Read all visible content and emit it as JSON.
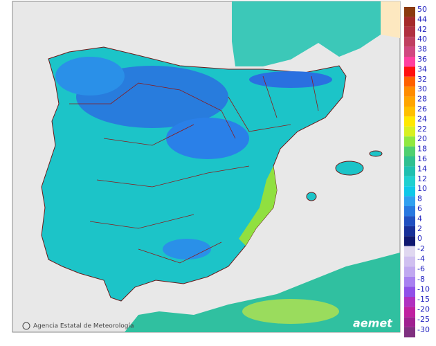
{
  "legend": {
    "upper": [
      {
        "value": 50,
        "color": "#8b3a0f"
      },
      {
        "value": 44,
        "color": "#a52a2a"
      },
      {
        "value": 42,
        "color": "#b03040"
      },
      {
        "value": 40,
        "color": "#c04060"
      },
      {
        "value": 38,
        "color": "#d04880"
      },
      {
        "value": 36,
        "color": "#ff40a0"
      },
      {
        "value": 34,
        "color": "#ff1010"
      },
      {
        "value": 32,
        "color": "#ff6000"
      },
      {
        "value": 30,
        "color": "#ff8c00"
      },
      {
        "value": 28,
        "color": "#ffa500"
      },
      {
        "value": 26,
        "color": "#ffc000"
      },
      {
        "value": 24,
        "color": "#ffe800"
      },
      {
        "value": 22,
        "color": "#d8f020"
      },
      {
        "value": 20,
        "color": "#90e840"
      },
      {
        "value": 18,
        "color": "#50d070"
      },
      {
        "value": 16,
        "color": "#30c090"
      },
      {
        "value": 14,
        "color": "#20c0b0"
      },
      {
        "value": 12,
        "color": "#20d0d0"
      },
      {
        "value": 10,
        "color": "#10c8e8"
      },
      {
        "value": 8,
        "color": "#30a0f0"
      },
      {
        "value": 6,
        "color": "#2878e0"
      },
      {
        "value": 4,
        "color": "#2050c0"
      },
      {
        "value": 2,
        "color": "#183098"
      },
      {
        "value": 0,
        "color": "#101870"
      }
    ],
    "lower": [
      {
        "value": -2,
        "color": "#e0d8f0"
      },
      {
        "value": -4,
        "color": "#d0c0f0"
      },
      {
        "value": -6,
        "color": "#c0a8f0"
      },
      {
        "value": -8,
        "color": "#a880f0"
      },
      {
        "value": -10,
        "color": "#9050e8"
      },
      {
        "value": -15,
        "color": "#b030c0"
      },
      {
        "value": -20,
        "color": "#c020a0"
      },
      {
        "value": -25,
        "color": "#a02090"
      },
      {
        "value": -30,
        "color": "#803080"
      }
    ]
  },
  "credit": "Agencia Estatal de Meteorología",
  "logo": "aemet"
}
